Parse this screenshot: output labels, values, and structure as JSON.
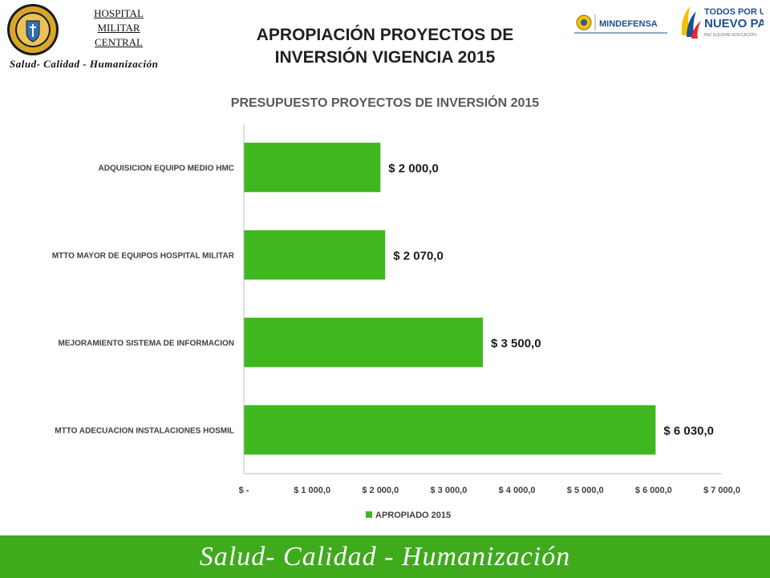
{
  "header": {
    "hospital_name": [
      "HOSPITAL",
      "MILITAR",
      "CENTRAL"
    ],
    "motto": "Salud- Calidad - Humanización",
    "title_lines": [
      "APROPIACIÓN PROYECTOS DE",
      "INVERSIÓN VIGENCIA 2015"
    ],
    "logo_mindefensa": "MINDEFENSA",
    "logo_todos": [
      "TODOS POR UN",
      "NUEVO PAÍS"
    ],
    "logo_todos_sub": "PAZ  EQUIDAD  EDUCACIÓN"
  },
  "chart_data": {
    "type": "bar",
    "orientation": "horizontal",
    "title": "PRESUPUESTO PROYECTOS DE INVERSIÓN 2015",
    "categories": [
      "ADQUISICION EQUIPO MEDIO HMC",
      "MTTO MAYOR DE EQUIPOS HOSPITAL MILITAR",
      "MEJORAMIENTO SISTEMA DE INFORMACION",
      "MTTO ADECUACION INSTALACIONES HOSMIL"
    ],
    "series": [
      {
        "name": "APROPIADO 2015",
        "values": [
          2000,
          2070,
          3500,
          6030
        ],
        "color": "#3fb71f"
      }
    ],
    "data_labels": [
      "$ 2 000,0",
      "$ 2 070,0",
      "$ 3 500,0",
      "$ 6 030,0"
    ],
    "xlim": [
      0,
      7000
    ],
    "x_ticks": [
      0,
      1000,
      2000,
      3000,
      4000,
      5000,
      6000,
      7000
    ],
    "x_tick_labels": [
      "$ -",
      "$ 1 000,0",
      "$ 2 000,0",
      "$ 3 000,0",
      "$ 4 000,0",
      "$ 5 000,0",
      "$ 6 000,0",
      "$ 7 000,0"
    ],
    "grid": false,
    "legend_position": "bottom"
  },
  "footer": {
    "motto": "Salud- Calidad - Humanización"
  },
  "colors": {
    "footer_bg": "#3eaa1c",
    "bar": "#3fb71f",
    "title_gray": "#595959"
  }
}
